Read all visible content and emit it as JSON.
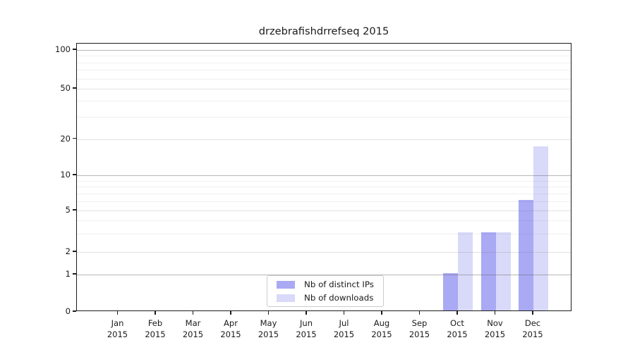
{
  "title": "drzebrafishdrrefseq 2015",
  "chart_data": {
    "type": "bar",
    "title": "drzebrafishdrrefseq 2015",
    "categories": [
      "Jan 2015",
      "Feb 2015",
      "Mar 2015",
      "Apr 2015",
      "May 2015",
      "Jun 2015",
      "Jul 2015",
      "Aug 2015",
      "Sep 2015",
      "Oct 2015",
      "Nov 2015",
      "Dec 2015"
    ],
    "series": [
      {
        "name": "Nb of distinct IPs",
        "color": "#a9a9f4",
        "values": [
          0,
          0,
          0,
          0,
          0,
          0,
          0,
          0,
          0,
          1,
          3,
          6
        ]
      },
      {
        "name": "Nb of downloads",
        "color": "#d9d9f9",
        "values": [
          0,
          0,
          0,
          0,
          0,
          0,
          0,
          0,
          0,
          3,
          3,
          17
        ]
      }
    ],
    "xlabel": "",
    "ylabel": "",
    "yscale": "symlog",
    "ylim": [
      0,
      112
    ],
    "yticks_labeled": [
      0,
      1,
      2,
      5,
      10,
      20,
      50,
      100
    ],
    "yticks_decade": [
      1,
      10,
      100
    ],
    "yticks_sub": [
      2,
      5,
      20,
      50
    ],
    "yticks_minor": [
      3,
      4,
      6,
      7,
      8,
      9,
      30,
      40,
      60,
      70,
      80,
      90
    ],
    "grid": true,
    "legend_position": "lower center"
  },
  "colors": {
    "bar_distinct_ips": "#a9a9f4",
    "bar_downloads": "#d9d9f9",
    "spine": "#1c1c1c",
    "legend_border": "#cccccc",
    "background": "#ffffff"
  }
}
